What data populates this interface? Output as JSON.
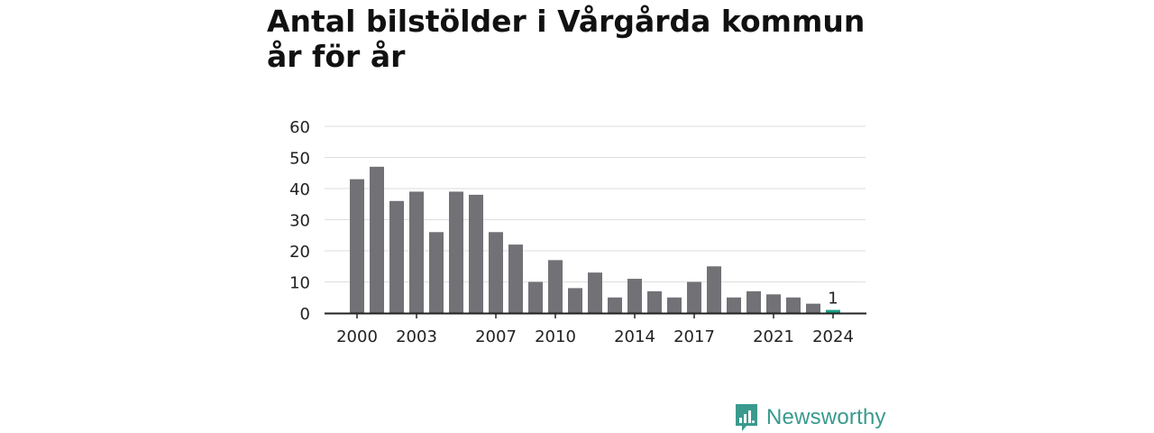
{
  "title": "Antal bilstölder i Vårgårda kommun år för år",
  "brand": {
    "name": "Newsworthy",
    "color": "#3a9a8e",
    "icon": "bar-chart-speech-bubble-icon"
  },
  "chart_data": {
    "type": "bar",
    "title": "Antal bilstölder i Vårgårda kommun år för år",
    "xlabel": "",
    "ylabel": "",
    "ylim": [
      0,
      60
    ],
    "yticks": [
      0,
      10,
      20,
      30,
      40,
      50,
      60
    ],
    "xticks": [
      "2000",
      "2003",
      "2007",
      "2010",
      "2014",
      "2017",
      "2021",
      "2024"
    ],
    "grid": true,
    "categories": [
      2000,
      2001,
      2002,
      2003,
      2004,
      2005,
      2006,
      2007,
      2008,
      2009,
      2010,
      2011,
      2012,
      2013,
      2014,
      2015,
      2016,
      2017,
      2018,
      2019,
      2020,
      2021,
      2022,
      2023,
      2024
    ],
    "values": [
      43,
      47,
      36,
      39,
      26,
      39,
      38,
      26,
      22,
      10,
      17,
      8,
      13,
      5,
      11,
      7,
      5,
      10,
      15,
      5,
      7,
      6,
      5,
      3,
      1
    ],
    "highlight": {
      "category": 2024,
      "label": "1"
    },
    "colors": {
      "bar": "#727176",
      "highlight": "#1a9e88",
      "grid": "#dddddd",
      "axis": "#222222"
    }
  }
}
